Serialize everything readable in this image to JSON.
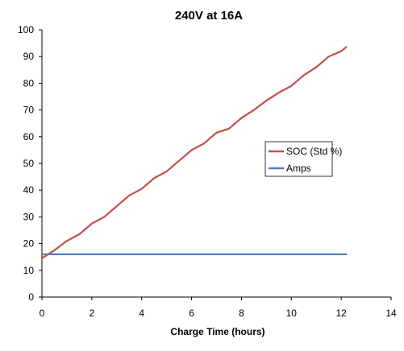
{
  "chart_data": {
    "type": "line",
    "title": "240V at 16A",
    "xlabel": "Charge Time (hours)",
    "ylabel": "",
    "xlim": [
      0,
      14
    ],
    "ylim": [
      0,
      100
    ],
    "x_ticks": [
      0,
      2,
      4,
      6,
      8,
      10,
      12,
      14
    ],
    "y_ticks": [
      0,
      10,
      20,
      30,
      40,
      50,
      60,
      70,
      80,
      90,
      100
    ],
    "grid": false,
    "legend": "right-center",
    "series": [
      {
        "name": "SOC (Std %)",
        "color": "#c0504d",
        "x": [
          0,
          0.5,
          1,
          1.5,
          2,
          2.5,
          3,
          3.5,
          4,
          4.5,
          5,
          5.5,
          6,
          6.5,
          7,
          7.5,
          8,
          8.5,
          9,
          9.5,
          10,
          10.5,
          11,
          11.5,
          12,
          12.2
        ],
        "values": [
          14.5,
          17.5,
          21,
          23.5,
          27.5,
          30,
          34,
          38,
          40.5,
          44.5,
          47,
          51,
          55,
          57.5,
          61.5,
          63,
          67,
          70,
          73.5,
          76.5,
          79,
          83,
          86,
          90,
          92,
          93.5
        ]
      },
      {
        "name": "Amps",
        "color": "#4f81bd",
        "x": [
          0,
          12.2
        ],
        "values": [
          16,
          16
        ]
      }
    ]
  }
}
